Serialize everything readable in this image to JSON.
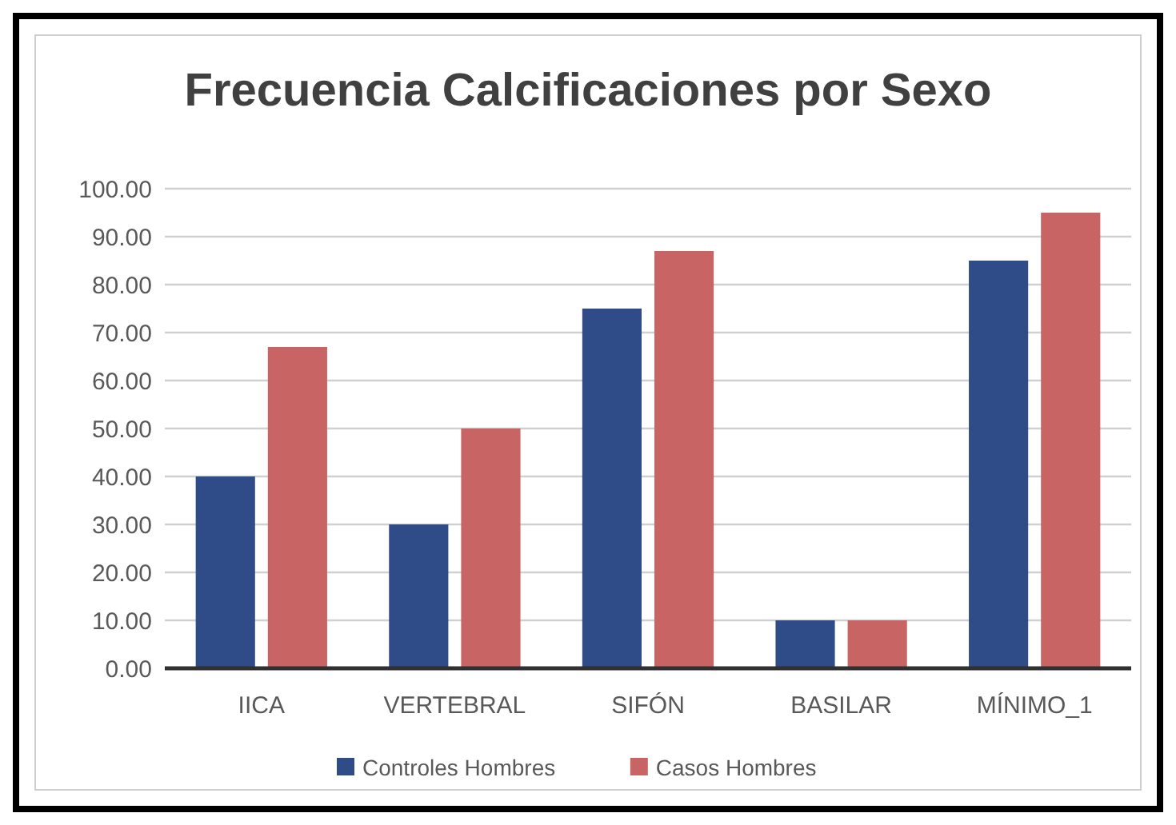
{
  "chart_data": {
    "type": "bar",
    "title": "Frecuencia Calcificaciones por Sexo",
    "categories": [
      "IICA",
      "VERTEBRAL",
      "SIFÓN",
      "BASILAR",
      "MÍNIMO_1"
    ],
    "series": [
      {
        "name": "Controles Hombres",
        "color": "#2f4b88",
        "values": [
          40,
          30,
          75,
          10,
          85
        ]
      },
      {
        "name": "Casos Hombres",
        "color": "#c96464",
        "values": [
          67,
          50,
          87,
          10,
          95
        ]
      }
    ],
    "ylim": [
      0,
      100
    ],
    "yticks": [
      {
        "value": 0,
        "label": "0.00"
      },
      {
        "value": 10,
        "label": "10.00"
      },
      {
        "value": 20,
        "label": "20.00"
      },
      {
        "value": 30,
        "label": "30.00"
      },
      {
        "value": 40,
        "label": "40.00"
      },
      {
        "value": 50,
        "label": "50.00"
      },
      {
        "value": 60,
        "label": "60.00"
      },
      {
        "value": 70,
        "label": "70.00"
      },
      {
        "value": 80,
        "label": "80.00"
      },
      {
        "value": 90,
        "label": "90.00"
      },
      {
        "value": 100,
        "label": "100.00"
      }
    ],
    "grid": "y",
    "legend": "bottom"
  }
}
